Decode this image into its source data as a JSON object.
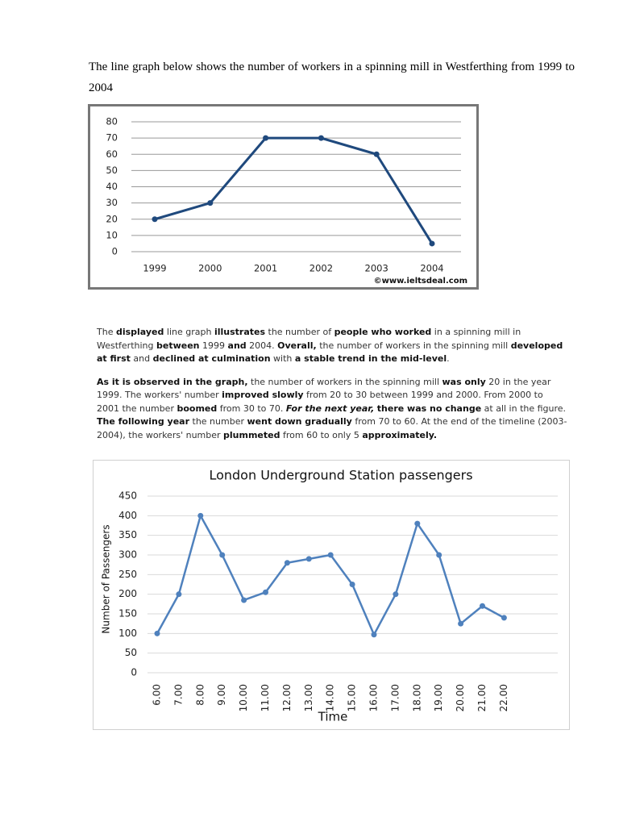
{
  "intro": "The line graph below shows the number of workers in  a spinning mill in Westferthing from 1999 to 2004",
  "chart_data": [
    {
      "type": "line",
      "categories": [
        "1999",
        "2000",
        "2001",
        "2002",
        "2003",
        "2004"
      ],
      "values": [
        20,
        30,
        70,
        70,
        60,
        5
      ],
      "color": "#1f497d",
      "ylim": [
        0,
        80
      ],
      "yticks": [
        0,
        10,
        20,
        30,
        40,
        50,
        60,
        70,
        80
      ],
      "grid": true,
      "source": "©www.ieltsdeal.com"
    },
    {
      "type": "line",
      "title": "London Underground Station passengers",
      "y_label": "Number of Passengers",
      "x_label": "Time",
      "categories": [
        "6.00",
        "7.00",
        "8.00",
        "9.00",
        "10.00",
        "11.00",
        "12.00",
        "13.00",
        "14.00",
        "15.00",
        "16.00",
        "17.00",
        "18.00",
        "19.00",
        "20.00",
        "21.00",
        "22.00"
      ],
      "values": [
        100,
        200,
        400,
        300,
        185,
        205,
        280,
        290,
        300,
        225,
        97,
        200,
        380,
        300,
        125,
        170,
        140
      ],
      "color": "#4f81bd",
      "ylim": [
        0,
        450
      ],
      "yticks": [
        0,
        50,
        100,
        150,
        200,
        250,
        300,
        350,
        400,
        450
      ],
      "grid": true
    }
  ],
  "passage": [
    [
      {
        "text": "The "
      },
      {
        "text": "displayed",
        "bold": true
      },
      {
        "text": " line graph "
      },
      {
        "text": "illustrates",
        "bold": true
      },
      {
        "text": " the number of "
      },
      {
        "text": "people who worked",
        "bold": true
      },
      {
        "text": " in a spinning mill in Westferthing "
      },
      {
        "text": "between",
        "bold": true
      },
      {
        "text": " 1999 "
      },
      {
        "text": "and",
        "bold": true
      },
      {
        "text": " 2004. "
      },
      {
        "text": "Overall,",
        "bold": true
      },
      {
        "text": " the number of workers in the spinning mill "
      },
      {
        "text": "developed at first",
        "bold": true
      },
      {
        "text": " and "
      },
      {
        "text": "declined at culmination",
        "bold": true
      },
      {
        "text": " with "
      },
      {
        "text": "a stable trend in the mid-level",
        "bold": true
      },
      {
        "text": "."
      }
    ],
    [
      {
        "text": "As it is observed in the graph,",
        "bold": true
      },
      {
        "text": " the number of workers in the spinning mill "
      },
      {
        "text": "was only",
        "bold": true
      },
      {
        "text": " 20 in the year 1999. The workers' number "
      },
      {
        "text": "improved slowly",
        "bold": true
      },
      {
        "text": " from 20 to 30 between 1999 and 2000. From 2000 to 2001 the number "
      },
      {
        "text": "boomed",
        "bold": true
      },
      {
        "text": " from 30 to 70. "
      },
      {
        "text": "For the next year,",
        "bold": true,
        "italic": true
      },
      {
        "text": " "
      },
      {
        "text": "there was no change",
        "bold": true
      },
      {
        "text": " at all in the figure. "
      },
      {
        "text": "The following year",
        "bold": true
      },
      {
        "text": " the number "
      },
      {
        "text": "went down gradually",
        "bold": true
      },
      {
        "text": " from 70 to 60. At the end of the timeline (2003-2004), the workers' number "
      },
      {
        "text": "plummeted",
        "bold": true
      },
      {
        "text": " from 60 to only 5 "
      },
      {
        "text": "approximately.",
        "bold": true
      }
    ]
  ]
}
